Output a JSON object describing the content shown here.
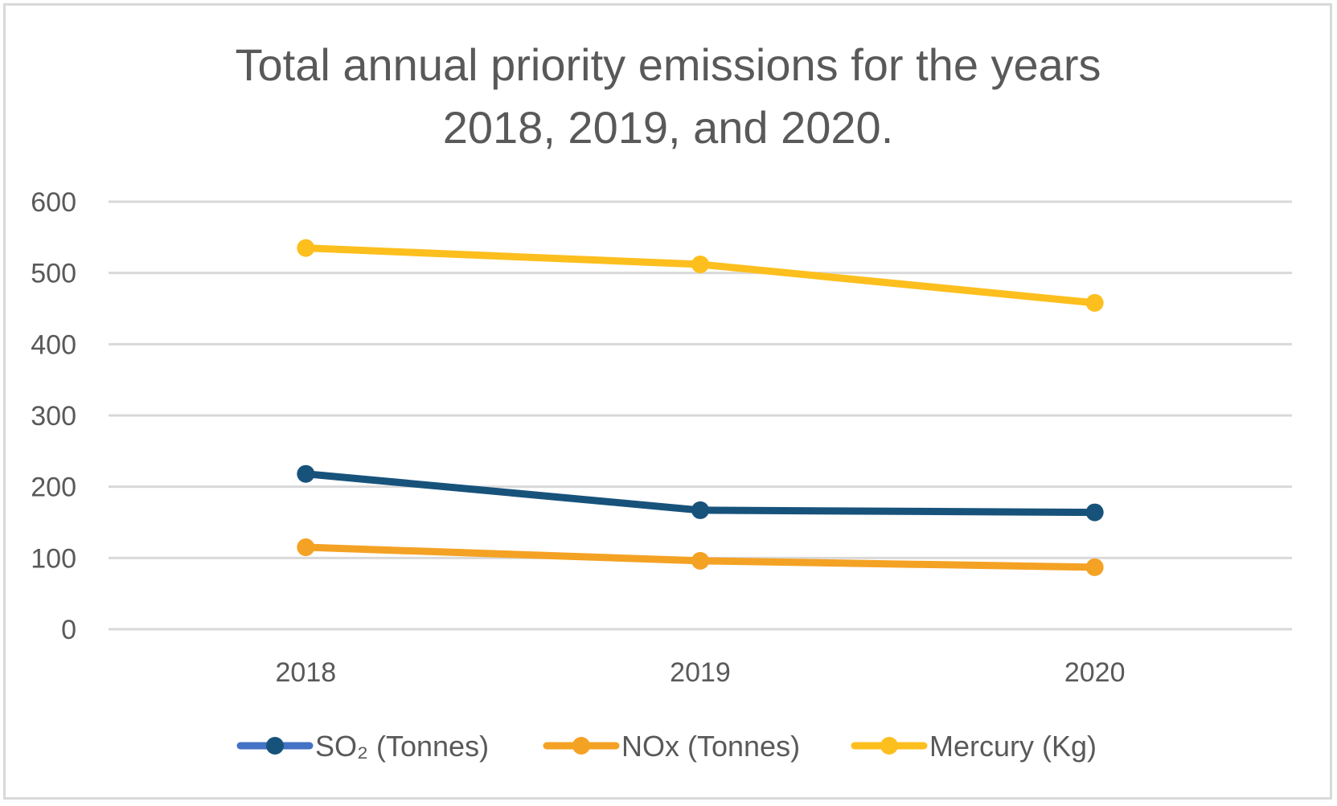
{
  "chart_data": {
    "type": "line",
    "title_lines": [
      "Total annual priority emissions for the years",
      "2018, 2019, and 2020."
    ],
    "title": "Total annual priority emissions for the years 2018, 2019, and 2020.",
    "xlabel": "",
    "ylabel": "",
    "categories": [
      "2018",
      "2019",
      "2020"
    ],
    "ylim": [
      0,
      600
    ],
    "yticks": [
      0,
      100,
      200,
      300,
      400,
      500,
      600
    ],
    "ytick_labels": [
      "0",
      "100",
      "200",
      "300",
      "400",
      "500",
      "600"
    ],
    "grid": true,
    "legend_position": "bottom",
    "series": [
      {
        "name": "SO₂  (Tonnes)",
        "values": [
          218,
          167,
          164
        ],
        "color": "#17527b",
        "legend_line_color": "#4472c4"
      },
      {
        "name": "NOx (Tonnes)",
        "values": [
          115,
          96,
          87
        ],
        "color": "#f4a224",
        "legend_line_color": "#f4a224"
      },
      {
        "name": "Mercury (Kg)",
        "values": [
          535,
          512,
          458
        ],
        "color": "#fdbf1e",
        "legend_line_color": "#fdbf1e"
      }
    ],
    "colors": {
      "text": "#595959",
      "grid": "#d9d9d9",
      "border": "#d9d9d9"
    }
  }
}
